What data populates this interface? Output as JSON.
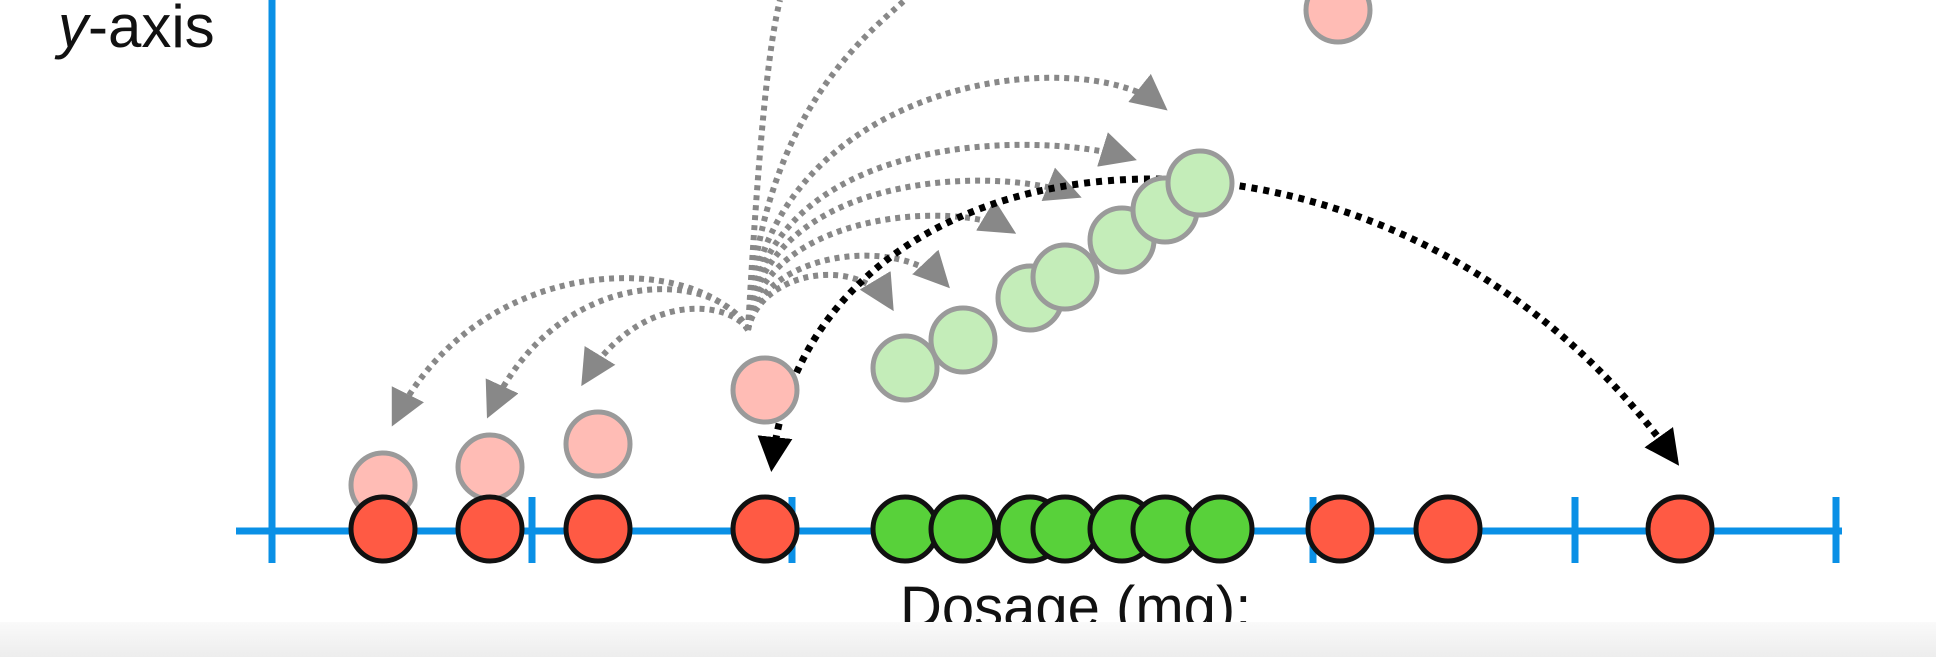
{
  "y_axis_label": {
    "italic": "y",
    "rest": "-axis"
  },
  "x_axis_label": "Dosage (mg):",
  "colors": {
    "axis": "#0a90e6",
    "red": "#ff5a44",
    "pink": "#ffbcb5",
    "green": "#58d13a",
    "light_green": "#c4edb9",
    "gray_arrow": "#888888",
    "black_arrow": "#000000"
  },
  "axis_dots": [
    {
      "color": "red"
    },
    {
      "color": "red"
    },
    {
      "color": "red"
    },
    {
      "color": "red"
    },
    {
      "color": "green"
    },
    {
      "color": "green"
    },
    {
      "color": "green"
    },
    {
      "color": "green"
    },
    {
      "color": "green"
    },
    {
      "color": "green"
    },
    {
      "color": "green"
    },
    {
      "color": "red"
    },
    {
      "color": "red"
    },
    {
      "color": "red"
    }
  ],
  "projected_points": [
    {
      "color": "pink"
    },
    {
      "color": "pink"
    },
    {
      "color": "pink"
    },
    {
      "color": "pink"
    },
    {
      "color": "light_green"
    },
    {
      "color": "light_green"
    },
    {
      "color": "light_green"
    },
    {
      "color": "light_green"
    },
    {
      "color": "light_green"
    },
    {
      "color": "light_green"
    },
    {
      "color": "light_green"
    },
    {
      "color": "pink"
    }
  ]
}
